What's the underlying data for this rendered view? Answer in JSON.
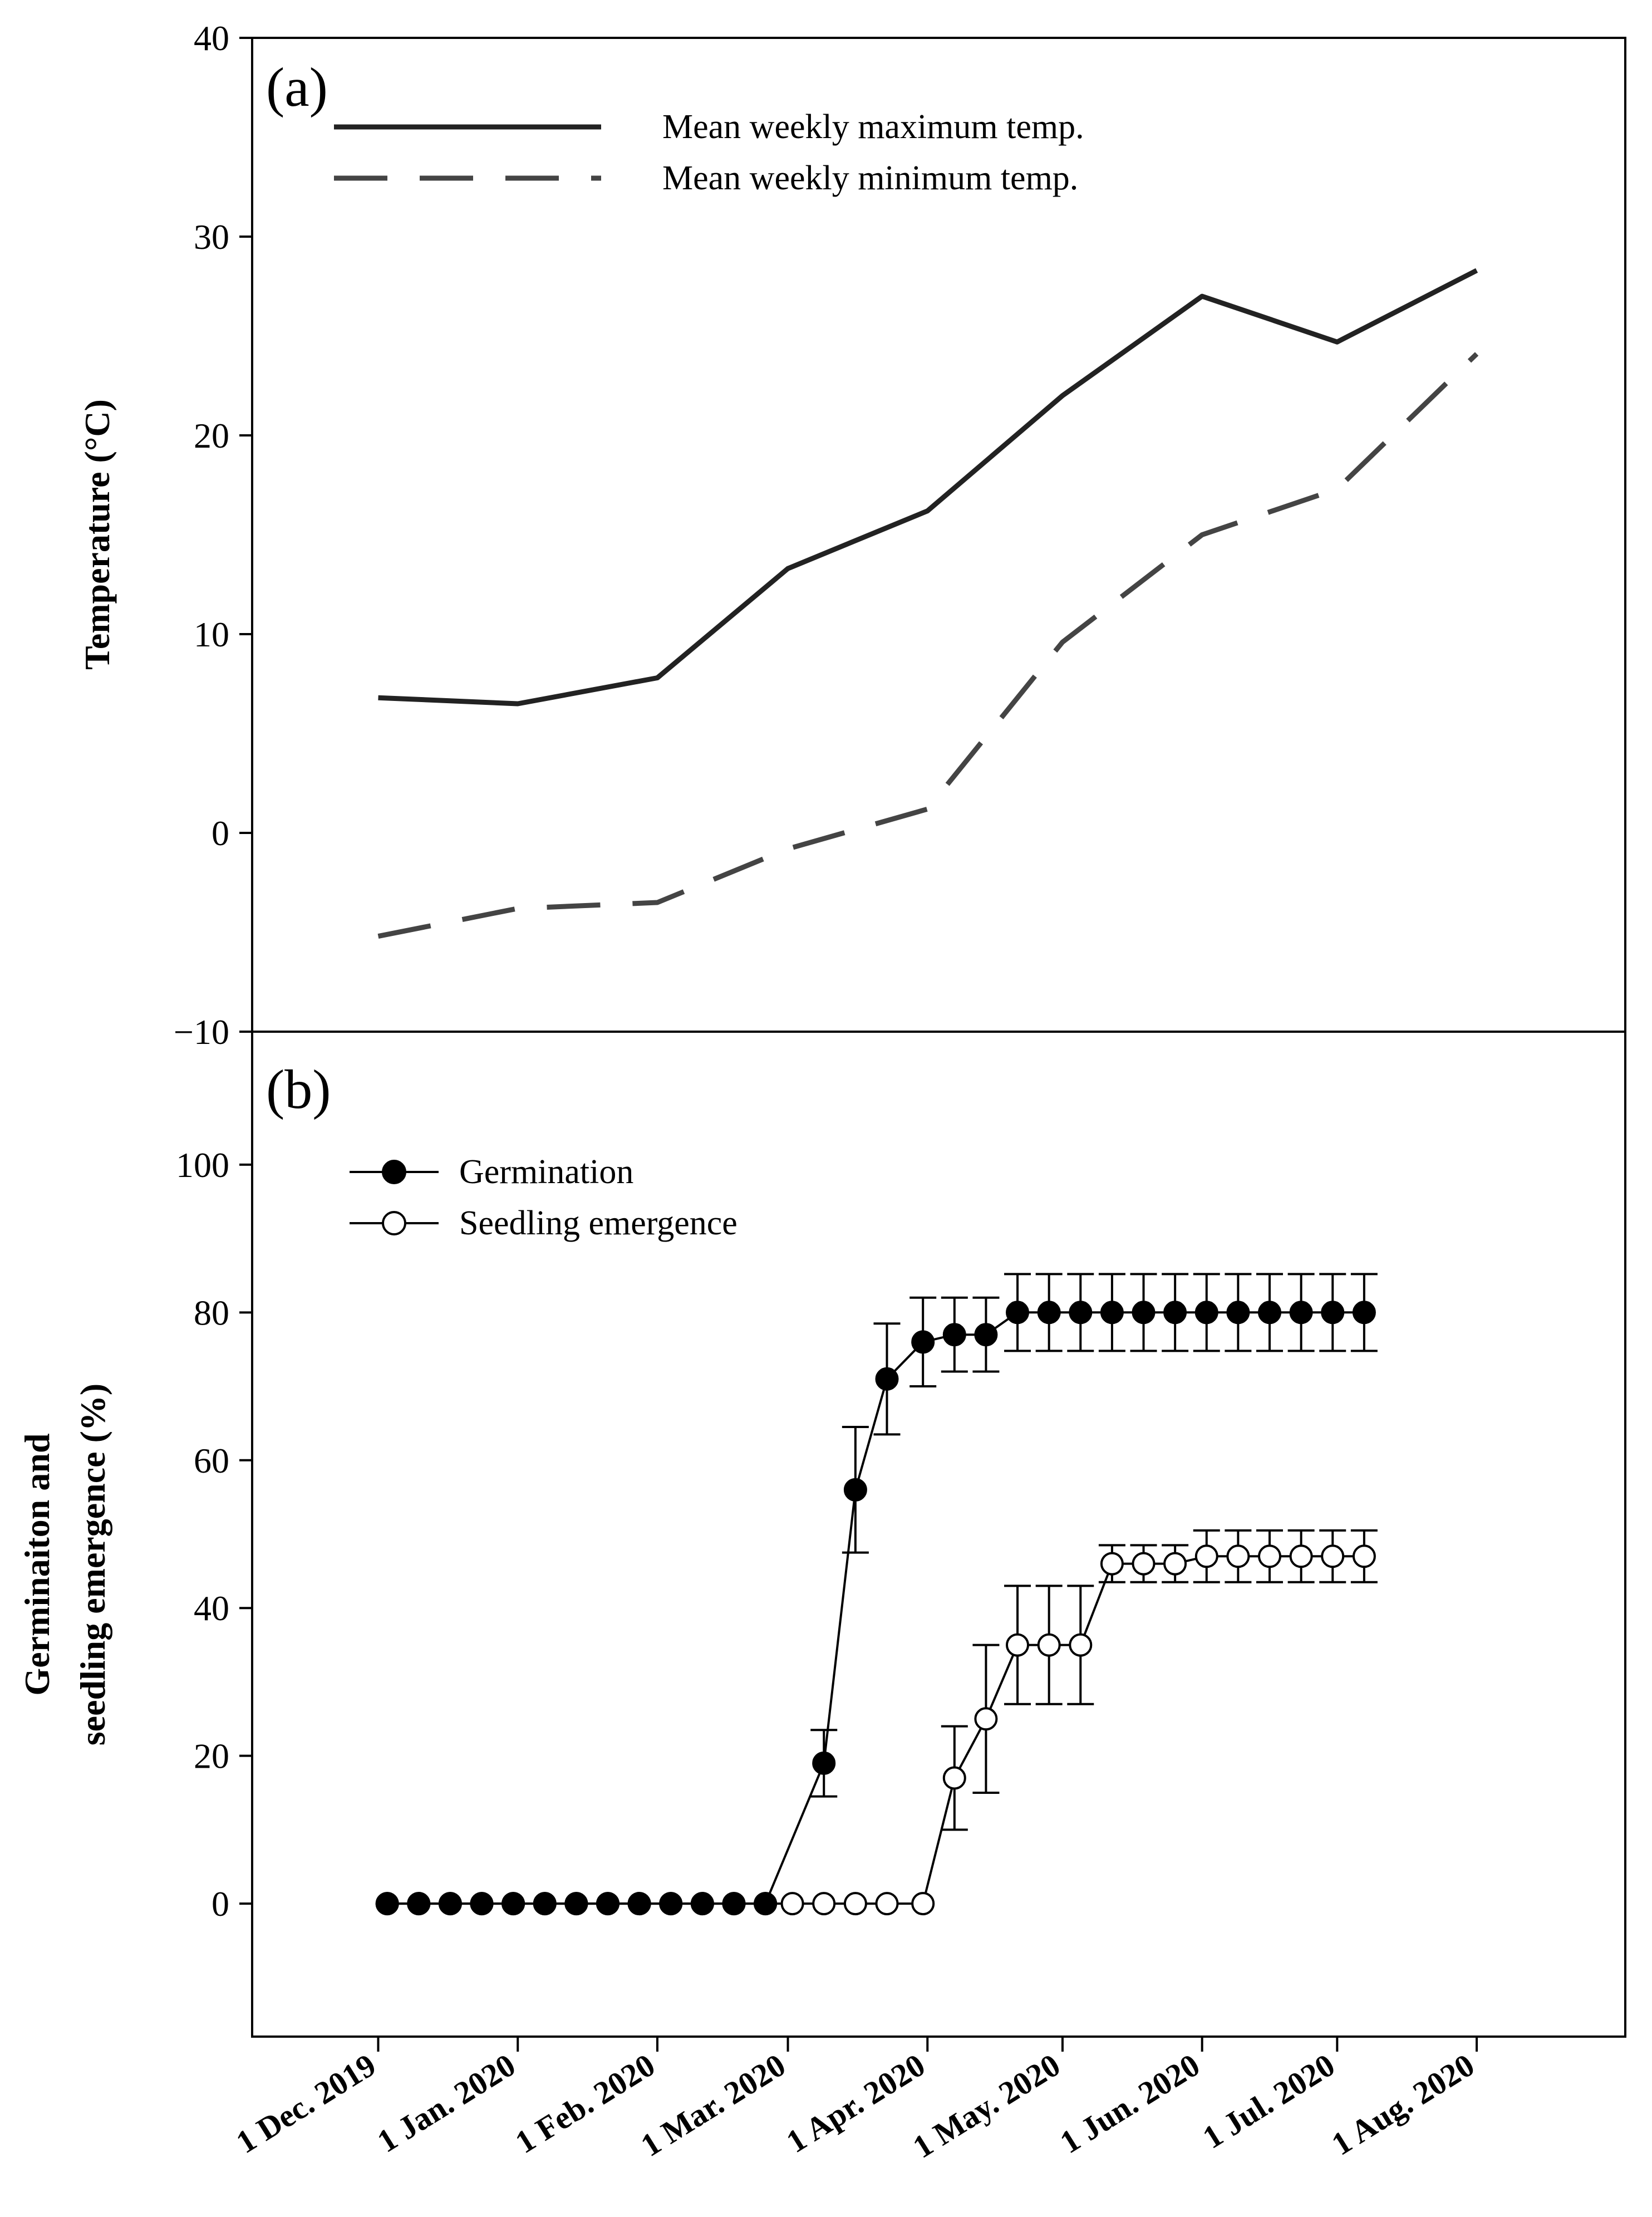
{
  "chart_data": [
    {
      "panel_label": "(a)",
      "type": "line",
      "ylabel": "Temperature (°C)",
      "ylim": [
        -10,
        40
      ],
      "yticks": [
        "40",
        "30",
        "20",
        "10",
        "0",
        "−10"
      ],
      "ytick_values": [
        40,
        30,
        20,
        10,
        0,
        -10
      ],
      "grid": false,
      "legend_position": "top-left",
      "x": [
        "2019-12-01",
        "2020-01-01",
        "2020-02-01",
        "2020-03-01",
        "2020-04-01",
        "2020-05-01",
        "2020-06-01",
        "2020-07-01",
        "2020-08-01"
      ],
      "series": [
        {
          "name": "Mean weekly maximum temp.",
          "style": "solid",
          "color": "#222222",
          "values": [
            6.8,
            6.5,
            7.8,
            13.3,
            16.2,
            22.0,
            27.0,
            24.7,
            28.3
          ]
        },
        {
          "name": "Mean weekly minimum temp.",
          "style": "dashed",
          "color": "#444444",
          "values": [
            -5.2,
            -3.8,
            -3.5,
            -0.8,
            1.2,
            9.6,
            15.0,
            17.3,
            24.1
          ]
        }
      ]
    },
    {
      "panel_label": "(b)",
      "type": "line",
      "ylabel_line1": "Germinaiton and",
      "ylabel_line2": "seedling emergence (%)",
      "ylim": [
        -18,
        118
      ],
      "yticks": [
        "100",
        "80",
        "60",
        "40",
        "20",
        "0"
      ],
      "ytick_values": [
        100,
        80,
        60,
        40,
        20,
        0
      ],
      "grid": false,
      "legend_position": "top-left",
      "series": [
        {
          "name": "Germination",
          "marker": "filled-circle",
          "x": [
            "2019-12-03",
            "2019-12-10",
            "2019-12-17",
            "2019-12-24",
            "2019-12-31",
            "2020-01-07",
            "2020-01-14",
            "2020-01-21",
            "2020-01-28",
            "2020-02-04",
            "2020-02-11",
            "2020-02-18",
            "2020-02-25",
            "2020-03-09",
            "2020-03-16",
            "2020-03-23",
            "2020-03-31",
            "2020-04-07",
            "2020-04-14",
            "2020-04-21",
            "2020-04-28",
            "2020-05-05",
            "2020-05-12",
            "2020-05-19",
            "2020-05-26",
            "2020-06-02",
            "2020-06-09",
            "2020-06-16",
            "2020-06-23",
            "2020-06-30",
            "2020-07-07"
          ],
          "values": [
            0,
            0,
            0,
            0,
            0,
            0,
            0,
            0,
            0,
            0,
            0,
            0,
            0,
            19,
            56,
            71,
            76,
            77,
            77,
            80,
            80,
            80,
            80,
            80,
            80,
            80,
            80,
            80,
            80,
            80,
            80
          ],
          "errors": [
            0,
            0,
            0,
            0,
            0,
            0,
            0,
            0,
            0,
            0,
            0,
            0,
            0,
            4.5,
            8.5,
            7.5,
            6,
            5,
            5,
            5.2,
            5.2,
            5.2,
            5.2,
            5.2,
            5.2,
            5.2,
            5.2,
            5.2,
            5.2,
            5.2,
            5.2
          ]
        },
        {
          "name": "Seedling emergence",
          "marker": "open-circle",
          "x": [
            "2019-12-03",
            "2019-12-10",
            "2019-12-17",
            "2019-12-24",
            "2019-12-31",
            "2020-01-07",
            "2020-01-14",
            "2020-01-21",
            "2020-01-28",
            "2020-02-04",
            "2020-02-11",
            "2020-02-18",
            "2020-02-25",
            "2020-03-02",
            "2020-03-09",
            "2020-03-16",
            "2020-03-23",
            "2020-03-31",
            "2020-04-07",
            "2020-04-14",
            "2020-04-21",
            "2020-04-28",
            "2020-05-05",
            "2020-05-12",
            "2020-05-19",
            "2020-05-26",
            "2020-06-02",
            "2020-06-09",
            "2020-06-16",
            "2020-06-23",
            "2020-06-30",
            "2020-07-07"
          ],
          "values": [
            0,
            0,
            0,
            0,
            0,
            0,
            0,
            0,
            0,
            0,
            0,
            0,
            0,
            0,
            0,
            0,
            0,
            0,
            17,
            25,
            35,
            35,
            35,
            46,
            46,
            46,
            47,
            47,
            47,
            47,
            47,
            47
          ],
          "errors": [
            0,
            0,
            0,
            0,
            0,
            0,
            0,
            0,
            0,
            0,
            0,
            0,
            0,
            0,
            0,
            0,
            0,
            0,
            7,
            10,
            8,
            8,
            8,
            2.5,
            2.5,
            2.5,
            3.5,
            3.5,
            3.5,
            3.5,
            3.5,
            3.5
          ]
        }
      ]
    }
  ],
  "x_axis": {
    "tick_labels": [
      "1 Dec. 2019",
      "1 Jan. 2020",
      "1 Feb. 2020",
      "1 Mar. 2020",
      "1 Apr. 2020",
      "1 May. 2020",
      "1 Jun. 2020",
      "1 Jul. 2020",
      "1 Aug. 2020"
    ],
    "tick_dates": [
      "2019-12-01",
      "2020-01-01",
      "2020-02-01",
      "2020-03-01",
      "2020-04-01",
      "2020-05-01",
      "2020-06-01",
      "2020-07-01",
      "2020-08-01"
    ],
    "range": [
      "2019-11-03",
      "2020-09-03"
    ]
  }
}
